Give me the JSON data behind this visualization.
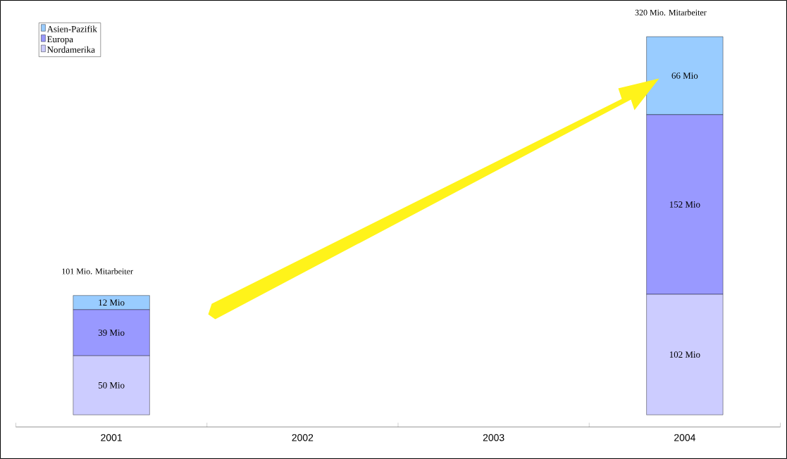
{
  "chart_data": {
    "type": "bar",
    "stacked": true,
    "categories": [
      "2001",
      "2002",
      "2003",
      "2004"
    ],
    "series": [
      {
        "name": "Nordamerika",
        "color": "#ccccff",
        "values": [
          50,
          null,
          null,
          102
        ],
        "value_labels": [
          "50 Mio",
          null,
          null,
          "102 Mio"
        ]
      },
      {
        "name": "Europa",
        "color": "#9999ff",
        "values": [
          39,
          null,
          null,
          152
        ],
        "value_labels": [
          "39 Mio",
          null,
          null,
          "152 Mio"
        ]
      },
      {
        "name": "Asien-Pazifik",
        "color": "#99ccff",
        "values": [
          12,
          null,
          null,
          66
        ],
        "value_labels": [
          "12 Mio",
          null,
          null,
          "66 Mio"
        ]
      }
    ],
    "totals": [
      "101 Mio. Mitarbeiter",
      null,
      null,
      "320 Mio. Mitarbeiter"
    ],
    "legend": "top left"
  }
}
